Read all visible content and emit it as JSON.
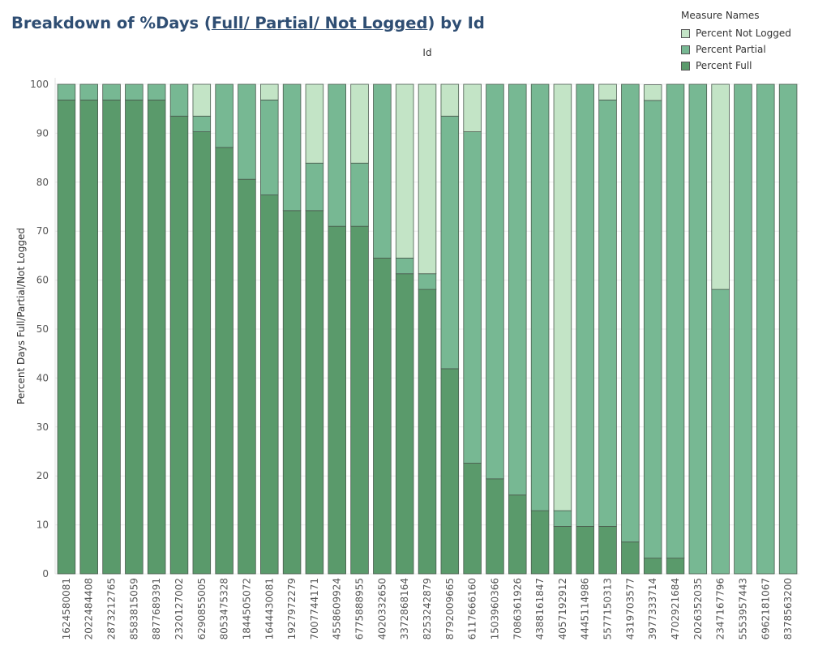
{
  "title": {
    "prefix": "Breakdown of %Days (",
    "underlined": "Full/ Partial/ Not Logged",
    "suffix": ") by Id"
  },
  "legend": {
    "title": "Measure Names",
    "items": [
      {
        "label": "Percent Not Logged",
        "color": "#c3e4c6"
      },
      {
        "label": "Percent Partial",
        "color": "#77b893"
      },
      {
        "label": "Percent Full",
        "color": "#5a9a6b"
      }
    ]
  },
  "chart_data": {
    "type": "bar",
    "stacked": true,
    "xlabel": "Id",
    "ylabel": "Percent Days Full/Partial/Not Logged",
    "ylim": [
      0,
      100
    ],
    "yticks": [
      0,
      10,
      20,
      30,
      40,
      50,
      60,
      70,
      80,
      90,
      100
    ],
    "grid": true,
    "legend_position": "top-right",
    "categories": [
      "1624580081",
      "2022484408",
      "2873212765",
      "8583815059",
      "8877689391",
      "2320127002",
      "6290855005",
      "8053475328",
      "1844505072",
      "1644430081",
      "1927972279",
      "7007744171",
      "4558609924",
      "6775888955",
      "4020332650",
      "3372868164",
      "8253242879",
      "8792009665",
      "6117666160",
      "1503960366",
      "7086361926",
      "4388161847",
      "4057192912",
      "4445114986",
      "5577150313",
      "4319703577",
      "3977333714",
      "4702921684",
      "2026352035",
      "2347167796",
      "5553957443",
      "6962181067",
      "8378563200"
    ],
    "series": [
      {
        "name": "Percent Full",
        "color": "#5a9a6b",
        "values": [
          96.8,
          96.8,
          96.8,
          96.8,
          96.8,
          93.5,
          90.3,
          87.1,
          80.6,
          77.4,
          74.2,
          74.2,
          71.0,
          71.0,
          64.5,
          61.3,
          58.1,
          41.9,
          22.6,
          19.4,
          16.1,
          12.9,
          9.7,
          9.7,
          9.7,
          6.5,
          3.2,
          3.2,
          0,
          0,
          0,
          0,
          0
        ]
      },
      {
        "name": "Percent Partial",
        "color": "#77b893",
        "values": [
          3.2,
          3.2,
          3.2,
          3.2,
          3.2,
          6.5,
          3.2,
          12.9,
          19.4,
          19.4,
          25.8,
          9.7,
          29.0,
          12.9,
          35.5,
          3.2,
          3.2,
          51.6,
          67.7,
          80.6,
          83.9,
          87.1,
          3.2,
          90.3,
          87.1,
          93.5,
          93.5,
          96.8,
          100,
          58.1,
          100,
          100,
          100
        ]
      },
      {
        "name": "Percent Not Logged",
        "color": "#c3e4c6",
        "values": [
          0,
          0,
          0,
          0,
          0,
          0,
          6.5,
          0,
          0,
          3.2,
          0,
          16.1,
          0,
          16.1,
          0,
          35.5,
          38.7,
          6.5,
          9.7,
          0,
          0,
          0,
          87.1,
          0,
          3.2,
          0,
          3.2,
          0,
          0,
          41.9,
          0,
          0,
          0
        ]
      }
    ]
  }
}
